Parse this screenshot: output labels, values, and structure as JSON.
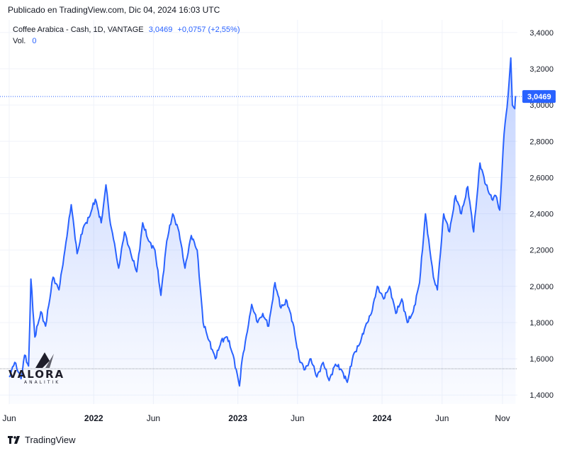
{
  "header": {
    "published": "Publicado en TradingView.com, Dic 04, 2024 16:03 UTC"
  },
  "legend": {
    "symbol": "Coffee Arabica - Cash, 1D, VANTAGE",
    "price": "3,0469",
    "change": "+0,0757 (+2,55%)",
    "vol_label": "Vol.",
    "vol_value": "0"
  },
  "price_tag": "3,0469",
  "footer": {
    "brand": "TradingView"
  },
  "watermark": {
    "name": "VALORA",
    "sub": "ANALITIK"
  },
  "colors": {
    "line": "#2962ff",
    "grid": "#f0f3fa",
    "text": "#131722",
    "tag": "#2962ff"
  },
  "chart_data": {
    "type": "area",
    "title": "Coffee Arabica - Cash, 1D, VANTAGE",
    "x_ticks": [
      "Jun",
      "2022",
      "Jun",
      "2023",
      "Jun",
      "2024",
      "Jun",
      "Nov"
    ],
    "y_ticks": [
      "1,4000",
      "1,6000",
      "1,8000",
      "2,0000",
      "2,2000",
      "2,4000",
      "2,6000",
      "2,8000",
      "3,0000",
      "3,2000",
      "3,4000"
    ],
    "ylim": [
      1.35,
      3.47
    ],
    "grid": true,
    "last_price": 3.0469,
    "reference_level": 1.545,
    "series": [
      {
        "x": [
          "2021-06-01",
          "2021-06-15",
          "2021-07-01",
          "2021-07-10",
          "2021-07-20",
          "2021-07-26",
          "2021-08-05",
          "2021-08-20",
          "2021-09-01",
          "2021-09-20",
          "2021-10-05",
          "2021-10-20",
          "2021-11-05",
          "2021-11-20",
          "2021-12-05",
          "2021-12-20",
          "2022-01-05",
          "2022-01-20",
          "2022-02-01",
          "2022-02-10",
          "2022-02-20",
          "2022-03-05",
          "2022-03-20",
          "2022-04-05",
          "2022-04-20",
          "2022-05-05",
          "2022-05-20",
          "2022-06-05",
          "2022-06-20",
          "2022-07-05",
          "2022-07-20",
          "2022-08-05",
          "2022-08-20",
          "2022-09-05",
          "2022-09-20",
          "2022-10-05",
          "2022-10-20",
          "2022-11-05",
          "2022-11-20",
          "2022-12-05",
          "2022-12-20",
          "2023-01-05",
          "2023-01-12",
          "2023-01-25",
          "2023-02-05",
          "2023-02-20",
          "2023-03-05",
          "2023-03-20",
          "2023-04-05",
          "2023-04-20",
          "2023-05-05",
          "2023-05-20",
          "2023-06-05",
          "2023-06-20",
          "2023-07-05",
          "2023-07-20",
          "2023-08-05",
          "2023-08-20",
          "2023-09-05",
          "2023-09-20",
          "2023-10-05",
          "2023-10-20",
          "2023-11-05",
          "2023-11-20",
          "2023-12-05",
          "2023-12-20",
          "2024-01-05",
          "2024-01-20",
          "2024-02-05",
          "2024-02-20",
          "2024-03-05",
          "2024-03-20",
          "2024-04-05",
          "2024-04-20",
          "2024-05-01",
          "2024-05-10",
          "2024-05-20",
          "2024-06-05",
          "2024-06-20",
          "2024-07-05",
          "2024-07-20",
          "2024-08-05",
          "2024-08-20",
          "2024-09-05",
          "2024-09-20",
          "2024-10-05",
          "2024-10-15",
          "2024-10-25",
          "2024-11-05",
          "2024-11-15",
          "2024-11-22",
          "2024-11-26",
          "2024-12-02",
          "2024-12-04"
        ],
        "y": [
          1.5,
          1.58,
          1.49,
          1.62,
          1.56,
          2.04,
          1.72,
          1.86,
          1.78,
          2.05,
          1.98,
          2.2,
          2.45,
          2.18,
          2.32,
          2.38,
          2.48,
          2.35,
          2.56,
          2.38,
          2.26,
          2.1,
          2.3,
          2.18,
          2.08,
          2.35,
          2.25,
          2.2,
          1.95,
          2.25,
          2.4,
          2.3,
          2.1,
          2.28,
          2.2,
          1.8,
          1.7,
          1.6,
          1.7,
          1.72,
          1.62,
          1.45,
          1.6,
          1.75,
          1.9,
          1.8,
          1.85,
          1.78,
          2.02,
          1.88,
          1.92,
          1.8,
          1.6,
          1.54,
          1.6,
          1.5,
          1.58,
          1.48,
          1.57,
          1.54,
          1.47,
          1.62,
          1.68,
          1.78,
          1.85,
          2.0,
          1.93,
          2.0,
          1.85,
          1.93,
          1.8,
          1.86,
          2.02,
          2.4,
          2.2,
          2.05,
          1.98,
          2.4,
          2.3,
          2.5,
          2.4,
          2.55,
          2.3,
          2.68,
          2.56,
          2.48,
          2.5,
          2.42,
          2.84,
          3.05,
          3.26,
          3.0,
          2.98,
          3.05
        ]
      }
    ]
  }
}
